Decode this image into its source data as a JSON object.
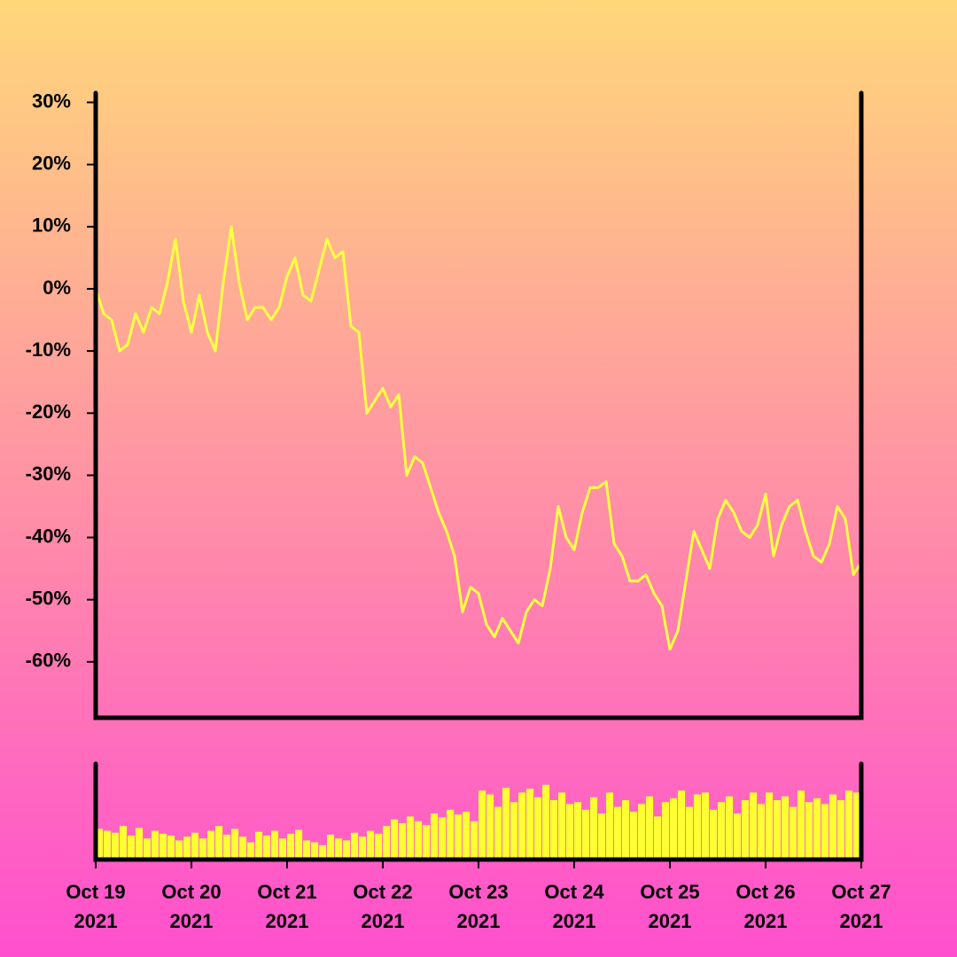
{
  "chart_data": [
    {
      "type": "line",
      "x": [
        "2021-10-19T00:00",
        "2021-10-19T02:00",
        "2021-10-19T04:00",
        "2021-10-19T06:00",
        "2021-10-19T08:00",
        "2021-10-19T10:00",
        "2021-10-19T12:00",
        "2021-10-19T14:00",
        "2021-10-19T16:00",
        "2021-10-19T18:00",
        "2021-10-19T20:00",
        "2021-10-19T22:00",
        "2021-10-20T00:00",
        "2021-10-20T02:00",
        "2021-10-20T04:00",
        "2021-10-20T06:00",
        "2021-10-20T08:00",
        "2021-10-20T10:00",
        "2021-10-20T12:00",
        "2021-10-20T14:00",
        "2021-10-20T16:00",
        "2021-10-20T18:00",
        "2021-10-20T20:00",
        "2021-10-20T22:00",
        "2021-10-21T00:00",
        "2021-10-21T02:00",
        "2021-10-21T04:00",
        "2021-10-21T06:00",
        "2021-10-21T08:00",
        "2021-10-21T10:00",
        "2021-10-21T12:00",
        "2021-10-21T14:00",
        "2021-10-21T16:00",
        "2021-10-21T18:00",
        "2021-10-21T20:00",
        "2021-10-21T22:00",
        "2021-10-22T00:00",
        "2021-10-22T02:00",
        "2021-10-22T04:00",
        "2021-10-22T06:00",
        "2021-10-22T08:00",
        "2021-10-22T10:00",
        "2021-10-22T12:00",
        "2021-10-22T14:00",
        "2021-10-22T16:00",
        "2021-10-22T18:00",
        "2021-10-22T20:00",
        "2021-10-22T22:00",
        "2021-10-23T00:00",
        "2021-10-23T02:00",
        "2021-10-23T04:00",
        "2021-10-23T06:00",
        "2021-10-23T08:00",
        "2021-10-23T10:00",
        "2021-10-23T12:00",
        "2021-10-23T14:00",
        "2021-10-23T16:00",
        "2021-10-23T18:00",
        "2021-10-23T20:00",
        "2021-10-23T22:00",
        "2021-10-24T00:00",
        "2021-10-24T02:00",
        "2021-10-24T04:00",
        "2021-10-24T06:00",
        "2021-10-24T08:00",
        "2021-10-24T10:00",
        "2021-10-24T12:00",
        "2021-10-24T14:00",
        "2021-10-24T16:00",
        "2021-10-24T18:00",
        "2021-10-24T20:00",
        "2021-10-24T22:00",
        "2021-10-25T00:00",
        "2021-10-25T02:00",
        "2021-10-25T04:00",
        "2021-10-25T06:00",
        "2021-10-25T08:00",
        "2021-10-25T10:00",
        "2021-10-25T12:00",
        "2021-10-25T14:00",
        "2021-10-25T16:00",
        "2021-10-25T18:00",
        "2021-10-25T20:00",
        "2021-10-25T22:00",
        "2021-10-26T00:00",
        "2021-10-26T02:00",
        "2021-10-26T04:00",
        "2021-10-26T06:00",
        "2021-10-26T08:00",
        "2021-10-26T10:00",
        "2021-10-26T12:00",
        "2021-10-26T14:00",
        "2021-10-26T16:00",
        "2021-10-26T18:00",
        "2021-10-26T20:00",
        "2021-10-26T22:00",
        "2021-10-27T00:00"
      ],
      "series": [
        {
          "color": "#ffff44",
          "values": [
            0,
            -4,
            -5,
            -10,
            -9,
            -4,
            -7,
            -3,
            -4,
            1,
            8,
            -2,
            -7,
            -1,
            -7,
            -10,
            1,
            10,
            1,
            -5,
            -3,
            -3,
            -5,
            -3,
            2,
            5,
            -1,
            -2,
            3,
            8,
            5,
            6,
            -6,
            -7,
            -20,
            -18,
            -16,
            -19,
            -17,
            -30,
            -27,
            -28,
            -32,
            -36,
            -39,
            -43,
            -52,
            -48,
            -49,
            -54,
            -56,
            -53,
            -55,
            -57,
            -52,
            -50,
            -51,
            -45,
            -35,
            -40,
            -42,
            -36,
            -32,
            -32,
            -31,
            -41,
            -43,
            -47,
            -47,
            -46,
            -49,
            -51,
            -58,
            -55,
            -47,
            -39,
            -42,
            -45,
            -37,
            -34,
            -36,
            -39,
            -40,
            -38,
            -33,
            -43,
            -38,
            -35,
            -34,
            -39,
            -43,
            -44,
            -41,
            -35,
            -37,
            -46,
            -44
          ]
        }
      ],
      "xlim": [
        "2021-10-19T00:00",
        "2021-10-27T00:00"
      ],
      "ylim": [
        -69,
        31.5
      ],
      "yticks": [
        {
          "value": 30,
          "label": "30%"
        },
        {
          "value": 20,
          "label": "20%"
        },
        {
          "value": 10,
          "label": "10%"
        },
        {
          "value": 0,
          "label": "0%"
        },
        {
          "value": -10,
          "label": "-10%"
        },
        {
          "value": -20,
          "label": "-20%"
        },
        {
          "value": -30,
          "label": "-30%"
        },
        {
          "value": -40,
          "label": "-40%"
        },
        {
          "value": -50,
          "label": "-50%"
        },
        {
          "value": -60,
          "label": "-60%"
        }
      ]
    },
    {
      "type": "bar",
      "x": [
        "2021-10-19T00:00",
        "2021-10-19T02:00",
        "2021-10-19T04:00",
        "2021-10-19T06:00",
        "2021-10-19T08:00",
        "2021-10-19T10:00",
        "2021-10-19T12:00",
        "2021-10-19T14:00",
        "2021-10-19T16:00",
        "2021-10-19T18:00",
        "2021-10-19T20:00",
        "2021-10-19T22:00",
        "2021-10-20T00:00",
        "2021-10-20T02:00",
        "2021-10-20T04:00",
        "2021-10-20T06:00",
        "2021-10-20T08:00",
        "2021-10-20T10:00",
        "2021-10-20T12:00",
        "2021-10-20T14:00",
        "2021-10-20T16:00",
        "2021-10-20T18:00",
        "2021-10-20T20:00",
        "2021-10-20T22:00",
        "2021-10-21T00:00",
        "2021-10-21T02:00",
        "2021-10-21T04:00",
        "2021-10-21T06:00",
        "2021-10-21T08:00",
        "2021-10-21T10:00",
        "2021-10-21T12:00",
        "2021-10-21T14:00",
        "2021-10-21T16:00",
        "2021-10-21T18:00",
        "2021-10-21T20:00",
        "2021-10-21T22:00",
        "2021-10-22T00:00",
        "2021-10-22T02:00",
        "2021-10-22T04:00",
        "2021-10-22T06:00",
        "2021-10-22T08:00",
        "2021-10-22T10:00",
        "2021-10-22T12:00",
        "2021-10-22T14:00",
        "2021-10-22T16:00",
        "2021-10-22T18:00",
        "2021-10-22T20:00",
        "2021-10-22T22:00",
        "2021-10-23T00:00",
        "2021-10-23T02:00",
        "2021-10-23T04:00",
        "2021-10-23T06:00",
        "2021-10-23T08:00",
        "2021-10-23T10:00",
        "2021-10-23T12:00",
        "2021-10-23T14:00",
        "2021-10-23T16:00",
        "2021-10-23T18:00",
        "2021-10-23T20:00",
        "2021-10-23T22:00",
        "2021-10-24T00:00",
        "2021-10-24T02:00",
        "2021-10-24T04:00",
        "2021-10-24T06:00",
        "2021-10-24T08:00",
        "2021-10-24T10:00",
        "2021-10-24T12:00",
        "2021-10-24T14:00",
        "2021-10-24T16:00",
        "2021-10-24T18:00",
        "2021-10-24T20:00",
        "2021-10-24T22:00",
        "2021-10-25T00:00",
        "2021-10-25T02:00",
        "2021-10-25T04:00",
        "2021-10-25T06:00",
        "2021-10-25T08:00",
        "2021-10-25T10:00",
        "2021-10-25T12:00",
        "2021-10-25T14:00",
        "2021-10-25T16:00",
        "2021-10-25T18:00",
        "2021-10-25T20:00",
        "2021-10-25T22:00",
        "2021-10-26T00:00",
        "2021-10-26T02:00",
        "2021-10-26T04:00",
        "2021-10-26T06:00",
        "2021-10-26T08:00",
        "2021-10-26T10:00",
        "2021-10-26T12:00",
        "2021-10-26T14:00",
        "2021-10-26T16:00",
        "2021-10-26T18:00",
        "2021-10-26T20:00",
        "2021-10-26T22:00"
      ],
      "values": [
        32,
        30,
        28,
        35,
        25,
        33,
        22,
        30,
        27,
        25,
        20,
        24,
        28,
        22,
        30,
        35,
        26,
        32,
        24,
        18,
        29,
        25,
        30,
        22,
        27,
        31,
        20,
        18,
        15,
        26,
        22,
        20,
        28,
        24,
        30,
        27,
        35,
        42,
        38,
        45,
        40,
        36,
        48,
        44,
        52,
        47,
        50,
        40,
        72,
        68,
        55,
        75,
        60,
        70,
        74,
        65,
        78,
        62,
        70,
        58,
        60,
        52,
        65,
        48,
        70,
        55,
        62,
        50,
        58,
        66,
        45,
        60,
        64,
        72,
        55,
        68,
        70,
        52,
        60,
        66,
        48,
        62,
        70,
        58,
        70,
        62,
        66,
        55,
        72,
        60,
        64,
        58,
        68,
        62,
        72,
        70
      ],
      "color": "#ffff33",
      "xlim": [
        "2021-10-19T00:00",
        "2021-10-27T00:00"
      ],
      "ylim": [
        0,
        100
      ],
      "xticks": [
        {
          "value": "2021-10-19T00:00",
          "label": [
            "Oct 19",
            "2021"
          ]
        },
        {
          "value": "2021-10-20T00:00",
          "label": [
            "Oct 20",
            "2021"
          ]
        },
        {
          "value": "2021-10-21T00:00",
          "label": [
            "Oct 21",
            "2021"
          ]
        },
        {
          "value": "2021-10-22T00:00",
          "label": [
            "Oct 22",
            "2021"
          ]
        },
        {
          "value": "2021-10-23T00:00",
          "label": [
            "Oct 23",
            "2021"
          ]
        },
        {
          "value": "2021-10-24T00:00",
          "label": [
            "Oct 24",
            "2021"
          ]
        },
        {
          "value": "2021-10-25T00:00",
          "label": [
            "Oct 25",
            "2021"
          ]
        },
        {
          "value": "2021-10-26T00:00",
          "label": [
            "Oct 26",
            "2021"
          ]
        },
        {
          "value": "2021-10-27T00:00",
          "label": [
            "Oct 27",
            "2021"
          ]
        }
      ]
    }
  ]
}
